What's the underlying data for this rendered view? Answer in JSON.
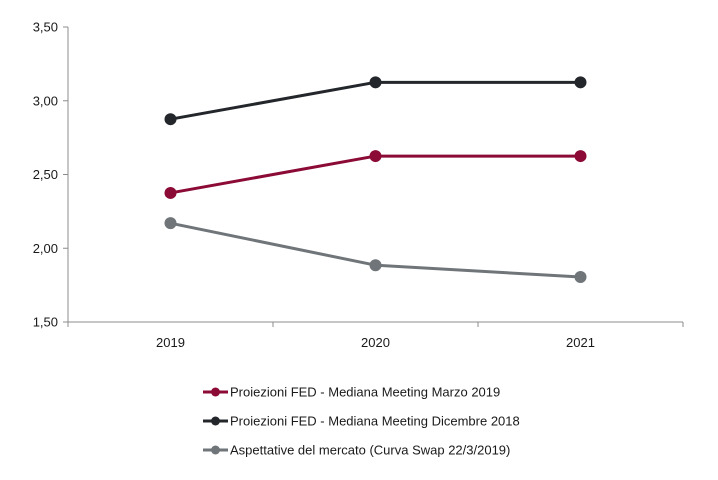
{
  "chart_data": {
    "type": "line",
    "categories": [
      "2019",
      "2020",
      "2021"
    ],
    "ylim": [
      1.5,
      3.5
    ],
    "yticks": [
      "1,50",
      "2,00",
      "2,50",
      "3,00",
      "3,50"
    ],
    "ytick_values": [
      1.5,
      2.0,
      2.5,
      3.0,
      3.5
    ],
    "grid": false,
    "legend_position": "bottom",
    "series": [
      {
        "name": "Proiezioni FED - Mediana Meeting Marzo 2019",
        "values": [
          2.375,
          2.625,
          2.625
        ],
        "color": "#8b0a36"
      },
      {
        "name": "Proiezioni FED - Mediana Meeting Dicembre 2018",
        "values": [
          2.875,
          3.125,
          3.125
        ],
        "color": "#23272b"
      },
      {
        "name": "Aspettative del mercato (Curva Swap 22/3/2019)",
        "values": [
          2.17,
          1.885,
          1.805
        ],
        "color": "#6f7579"
      }
    ]
  }
}
